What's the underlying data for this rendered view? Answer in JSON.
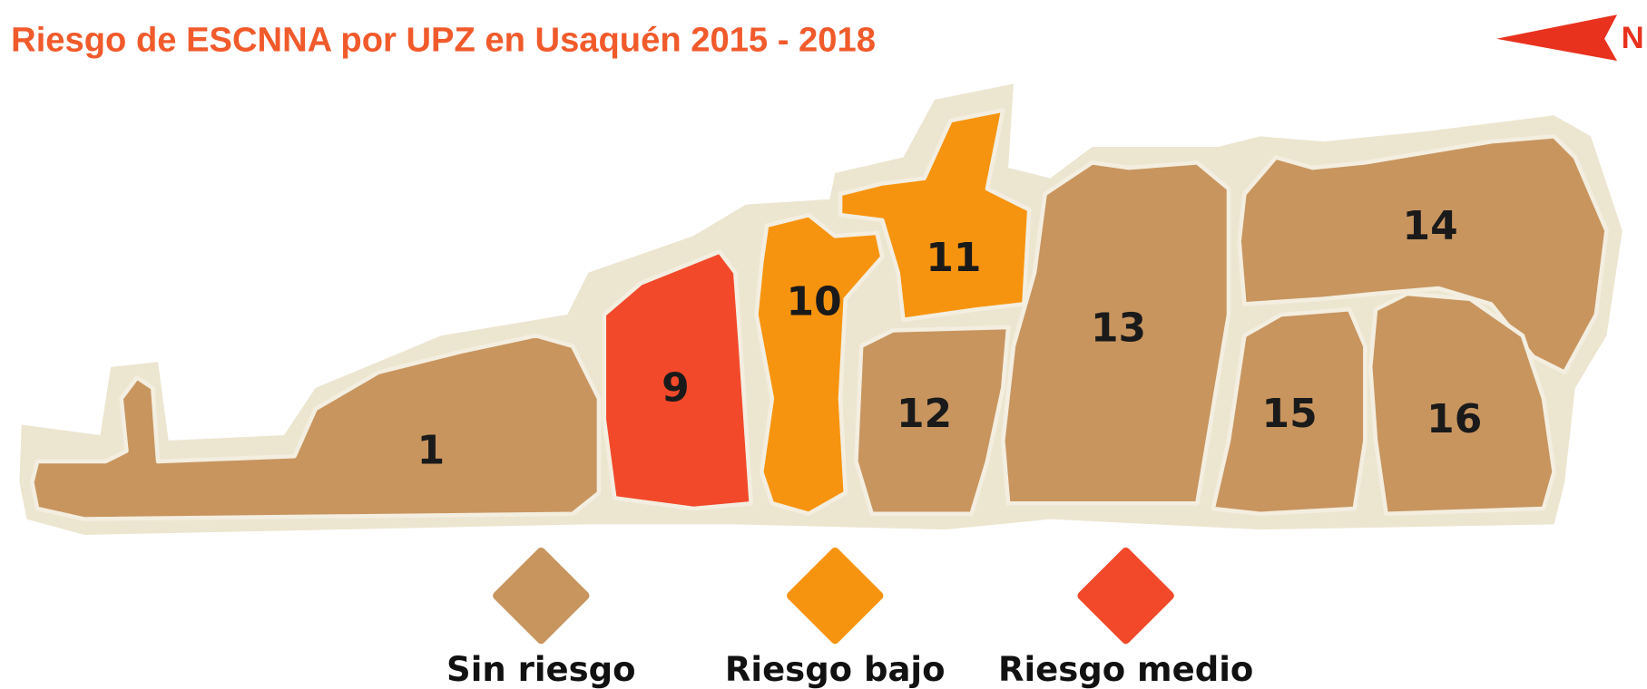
{
  "title": "Riesgo de ESCNNA por UPZ en Usaquén 2015 - 2018",
  "north": "N",
  "regions": [
    {
      "label": "1",
      "color": "#c8955f"
    },
    {
      "label": "9",
      "color": "#f2492a"
    },
    {
      "label": "10",
      "color": "#f7940f"
    },
    {
      "label": "11",
      "color": "#f7940f"
    },
    {
      "label": "12",
      "color": "#c8955f"
    },
    {
      "label": "13",
      "color": "#c8955f"
    },
    {
      "label": "14",
      "color": "#c8955f"
    },
    {
      "label": "15",
      "color": "#c8955f"
    },
    {
      "label": "16",
      "color": "#c8955f"
    }
  ],
  "legend": [
    {
      "label": "Sin riesgo",
      "color": "#c8955f"
    },
    {
      "label": "Riesgo bajo",
      "color": "#f7940f"
    },
    {
      "label": "Riesgo medio",
      "color": "#f2492a"
    }
  ]
}
